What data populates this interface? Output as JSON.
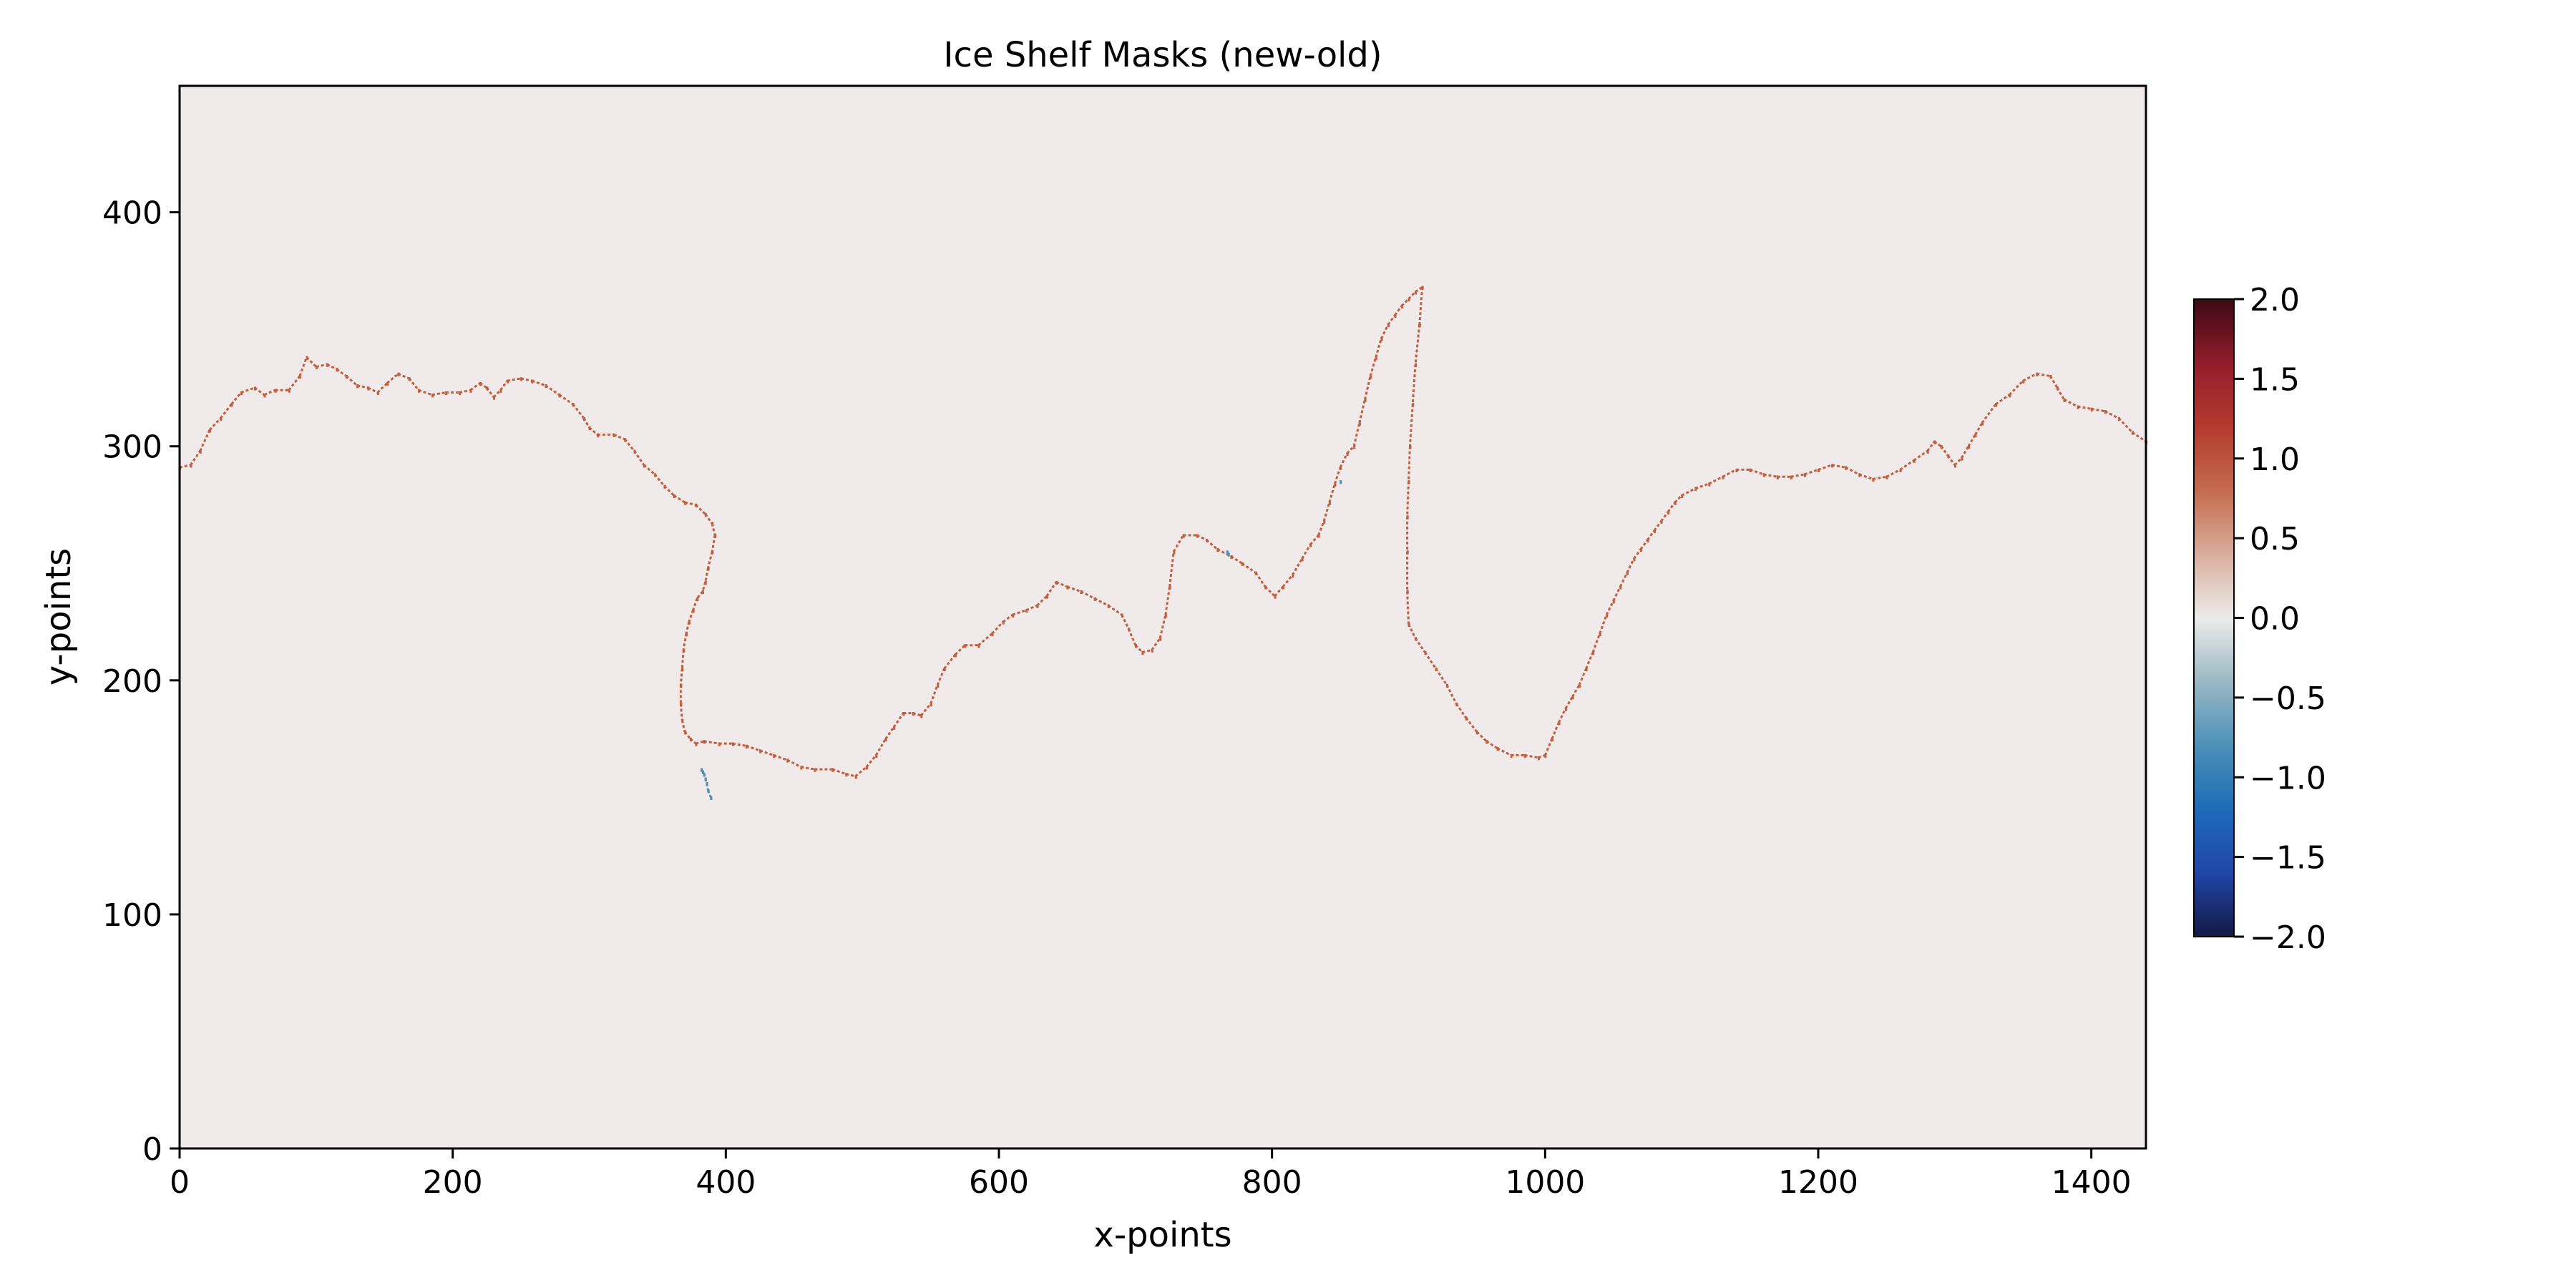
{
  "chart_data": {
    "type": "heatmap",
    "title": "Ice Shelf Masks (new-old)",
    "xlabel": "x-points",
    "ylabel": "y-points",
    "xlim": [
      0,
      1440
    ],
    "ylim": [
      0,
      454
    ],
    "x_ticks": [
      0,
      200,
      400,
      600,
      800,
      1000,
      1200,
      1400
    ],
    "y_ticks": [
      0,
      100,
      200,
      300,
      400
    ],
    "background_value": 0.0,
    "colorbar": {
      "min": -2.0,
      "max": 2.0,
      "ticks": [
        2.0,
        1.5,
        1.0,
        0.5,
        0.0,
        -0.5,
        -1.0,
        -1.5,
        -2.0
      ],
      "tick_labels": [
        "2.0",
        "1.5",
        "1.0",
        "0.5",
        "0.0",
        "−0.5",
        "−1.0",
        "−1.5",
        "−2.0"
      ],
      "colors": [
        "#131a45",
        "#2145a8",
        "#1e6bb9",
        "#4d91b8",
        "#9ab8c4",
        "#ecebea",
        "#d9ad9b",
        "#c46b4e",
        "#b43a2f",
        "#911d2b",
        "#3c0a14"
      ]
    },
    "series": [
      {
        "value": 1.0,
        "color": "#c1603e",
        "points": [
          [
            0,
            291
          ],
          [
            8,
            292
          ],
          [
            15,
            298
          ],
          [
            22,
            307
          ],
          [
            30,
            312
          ],
          [
            38,
            318
          ],
          [
            45,
            323
          ],
          [
            55,
            325
          ],
          [
            62,
            322
          ],
          [
            70,
            324
          ],
          [
            80,
            324
          ],
          [
            88,
            330
          ],
          [
            93,
            338
          ],
          [
            100,
            334
          ],
          [
            108,
            335
          ],
          [
            115,
            333
          ],
          [
            122,
            330
          ],
          [
            130,
            326
          ],
          [
            138,
            325
          ],
          [
            145,
            323
          ],
          [
            152,
            327
          ],
          [
            160,
            331
          ],
          [
            168,
            329
          ],
          [
            175,
            324
          ],
          [
            185,
            322
          ],
          [
            195,
            323
          ],
          [
            205,
            323
          ],
          [
            213,
            324
          ],
          [
            220,
            327
          ],
          [
            225,
            325
          ],
          [
            230,
            321
          ],
          [
            235,
            324
          ],
          [
            240,
            328
          ],
          [
            250,
            329
          ],
          [
            258,
            328
          ],
          [
            268,
            326
          ],
          [
            278,
            322
          ],
          [
            288,
            318
          ],
          [
            296,
            312
          ],
          [
            300,
            308
          ],
          [
            306,
            305
          ],
          [
            318,
            305
          ],
          [
            326,
            303
          ],
          [
            333,
            298
          ],
          [
            340,
            292
          ],
          [
            348,
            288
          ],
          [
            355,
            283
          ],
          [
            362,
            279
          ],
          [
            370,
            276
          ],
          [
            378,
            275
          ],
          [
            385,
            271
          ],
          [
            390,
            267
          ],
          [
            392,
            262
          ],
          [
            390,
            255
          ],
          [
            387,
            248
          ],
          [
            385,
            242
          ],
          [
            383,
            238
          ],
          [
            379,
            235
          ],
          [
            376,
            230
          ],
          [
            373,
            225
          ],
          [
            371,
            220
          ],
          [
            369,
            213
          ],
          [
            368,
            205
          ],
          [
            367,
            198
          ],
          [
            367,
            190
          ],
          [
            368,
            183
          ],
          [
            370,
            178
          ],
          [
            374,
            175
          ],
          [
            378,
            173
          ],
          [
            384,
            174
          ],
          [
            395,
            173
          ],
          [
            405,
            173
          ],
          [
            415,
            172
          ],
          [
            425,
            170
          ],
          [
            435,
            168
          ],
          [
            445,
            166
          ],
          [
            455,
            163
          ],
          [
            465,
            162
          ],
          [
            478,
            162
          ],
          [
            488,
            160
          ],
          [
            495,
            159
          ],
          [
            503,
            163
          ],
          [
            510,
            168
          ],
          [
            517,
            175
          ],
          [
            523,
            180
          ],
          [
            530,
            186
          ],
          [
            537,
            186
          ],
          [
            543,
            185
          ],
          [
            550,
            190
          ],
          [
            555,
            198
          ],
          [
            560,
            205
          ],
          [
            568,
            211
          ],
          [
            575,
            215
          ],
          [
            585,
            215
          ],
          [
            595,
            220
          ],
          [
            603,
            225
          ],
          [
            610,
            228
          ],
          [
            620,
            230
          ],
          [
            628,
            232
          ],
          [
            635,
            236
          ],
          [
            642,
            242
          ],
          [
            650,
            240
          ],
          [
            660,
            238
          ],
          [
            670,
            235
          ],
          [
            680,
            232
          ],
          [
            690,
            228
          ],
          [
            695,
            222
          ],
          [
            700,
            215
          ],
          [
            705,
            212
          ],
          [
            712,
            213
          ],
          [
            718,
            218
          ],
          [
            722,
            228
          ],
          [
            725,
            240
          ],
          [
            728,
            255
          ],
          [
            735,
            262
          ],
          [
            745,
            262
          ],
          [
            752,
            260
          ],
          [
            760,
            256
          ],
          [
            770,
            253
          ],
          [
            778,
            250
          ],
          [
            788,
            246
          ],
          [
            795,
            240
          ],
          [
            802,
            236
          ],
          [
            808,
            240
          ],
          [
            815,
            245
          ],
          [
            822,
            252
          ],
          [
            828,
            258
          ],
          [
            834,
            262
          ],
          [
            838,
            268
          ],
          [
            842,
            276
          ],
          [
            846,
            284
          ],
          [
            850,
            291
          ],
          [
            855,
            297
          ],
          [
            860,
            300
          ],
          [
            864,
            310
          ],
          [
            868,
            320
          ],
          [
            872,
            330
          ],
          [
            876,
            338
          ],
          [
            880,
            346
          ],
          [
            885,
            352
          ],
          [
            890,
            356
          ],
          [
            895,
            360
          ],
          [
            900,
            363
          ],
          [
            905,
            366
          ],
          [
            910,
            368
          ],
          [
            908,
            352
          ],
          [
            905,
            335
          ],
          [
            903,
            318
          ],
          [
            901,
            300
          ],
          [
            900,
            285
          ],
          [
            899,
            270
          ],
          [
            899,
            255
          ],
          [
            899,
            238
          ],
          [
            900,
            224
          ],
          [
            905,
            218
          ],
          [
            912,
            212
          ],
          [
            920,
            205
          ],
          [
            928,
            198
          ],
          [
            935,
            190
          ],
          [
            942,
            184
          ],
          [
            950,
            178
          ],
          [
            957,
            174
          ],
          [
            965,
            171
          ],
          [
            975,
            168
          ],
          [
            985,
            168
          ],
          [
            995,
            167
          ],
          [
            1000,
            168
          ],
          [
            1005,
            175
          ],
          [
            1010,
            182
          ],
          [
            1015,
            188
          ],
          [
            1020,
            193
          ],
          [
            1025,
            198
          ],
          [
            1030,
            205
          ],
          [
            1035,
            212
          ],
          [
            1040,
            220
          ],
          [
            1045,
            228
          ],
          [
            1050,
            234
          ],
          [
            1055,
            240
          ],
          [
            1060,
            246
          ],
          [
            1065,
            252
          ],
          [
            1070,
            256
          ],
          [
            1075,
            260
          ],
          [
            1080,
            264
          ],
          [
            1085,
            268
          ],
          [
            1090,
            272
          ],
          [
            1095,
            276
          ],
          [
            1100,
            279
          ],
          [
            1110,
            282
          ],
          [
            1120,
            284
          ],
          [
            1130,
            287
          ],
          [
            1140,
            290
          ],
          [
            1150,
            290
          ],
          [
            1160,
            288
          ],
          [
            1170,
            287
          ],
          [
            1180,
            287
          ],
          [
            1190,
            288
          ],
          [
            1200,
            290
          ],
          [
            1210,
            292
          ],
          [
            1220,
            291
          ],
          [
            1230,
            288
          ],
          [
            1240,
            286
          ],
          [
            1250,
            287
          ],
          [
            1260,
            290
          ],
          [
            1270,
            294
          ],
          [
            1280,
            298
          ],
          [
            1285,
            302
          ],
          [
            1290,
            300
          ],
          [
            1295,
            296
          ],
          [
            1300,
            292
          ],
          [
            1305,
            295
          ],
          [
            1310,
            300
          ],
          [
            1315,
            305
          ],
          [
            1320,
            310
          ],
          [
            1330,
            318
          ],
          [
            1340,
            322
          ],
          [
            1350,
            328
          ],
          [
            1360,
            331
          ],
          [
            1370,
            330
          ],
          [
            1375,
            325
          ],
          [
            1380,
            320
          ],
          [
            1390,
            317
          ],
          [
            1400,
            316
          ],
          [
            1410,
            315
          ],
          [
            1420,
            312
          ],
          [
            1430,
            306
          ],
          [
            1440,
            302
          ]
        ]
      },
      {
        "value": -1.0,
        "color": "#4d91b8",
        "points": [
          [
            382,
            162
          ],
          [
            383,
            161
          ],
          [
            384,
            160
          ],
          [
            385,
            158
          ],
          [
            386,
            156
          ],
          [
            387,
            153
          ],
          [
            389,
            150
          ],
          [
            767,
            255
          ],
          [
            768,
            254
          ],
          [
            850,
            285
          ]
        ]
      }
    ]
  }
}
